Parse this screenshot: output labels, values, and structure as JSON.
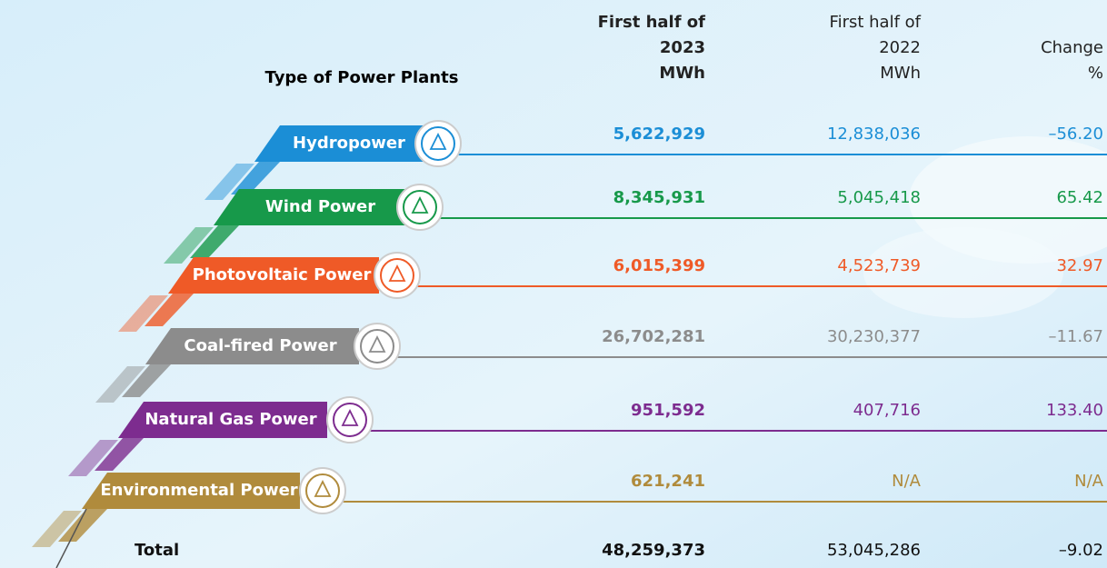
{
  "header": {
    "type_label": "Type of Power Plants",
    "col_2023": [
      "First half of",
      "2023",
      "MWh"
    ],
    "col_2022": [
      "First half of",
      "2022",
      "MWh"
    ],
    "col_change": [
      "Change",
      "%"
    ]
  },
  "rows": [
    {
      "label": "Hydropower",
      "color": "#1b8ed6",
      "v2023": "5,622,929",
      "v2022": "12,838,036",
      "change": "–56.20"
    },
    {
      "label": "Wind Power",
      "color": "#17994a",
      "v2023": "8,345,931",
      "v2022": "5,045,418",
      "change": "65.42"
    },
    {
      "label": "Photovoltaic Power",
      "color": "#ef5a27",
      "v2023": "6,015,399",
      "v2022": "4,523,739",
      "change": "32.97"
    },
    {
      "label": "Coal-fired Power",
      "color": "#8c8c8c",
      "v2023": "26,702,281",
      "v2022": "30,230,377",
      "change": "–11.67"
    },
    {
      "label": "Natural Gas Power",
      "color": "#7d2c8f",
      "v2023": "951,592",
      "v2022": "407,716",
      "change": "133.40"
    },
    {
      "label": "Environmental Power",
      "color": "#b08b3c",
      "v2023": "621,241",
      "v2022": "N/A",
      "change": "N/A"
    }
  ],
  "total": {
    "label": "Total",
    "v2023": "48,259,373",
    "v2022": "53,045,286",
    "change": "–9.02"
  }
}
